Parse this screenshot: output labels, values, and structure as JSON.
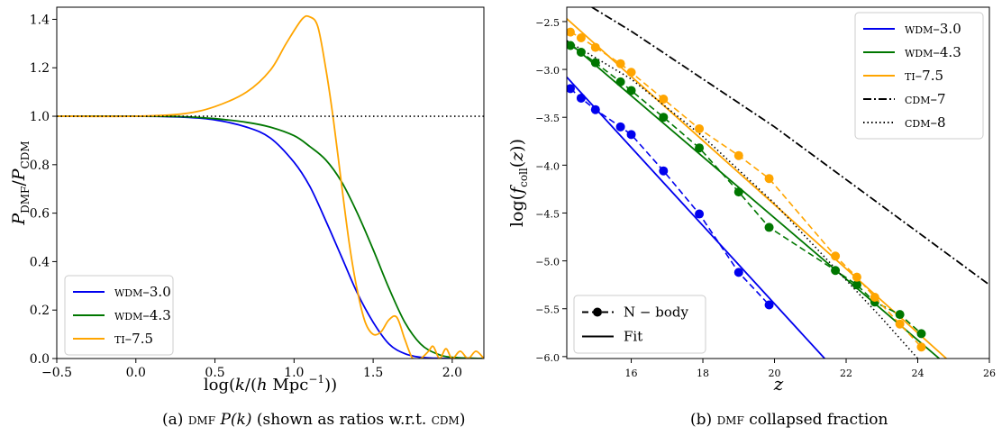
{
  "figure": {
    "captions": [
      {
        "prefix": "(a) ",
        "sc": "dmf",
        "rest_italic": " P(k)",
        "rest": " (shown as ratios w.r.t. ",
        "sc2": "cdm",
        "end": ")"
      },
      {
        "prefix": "(b) ",
        "sc": "dmf",
        "rest": " collapsed fraction"
      }
    ]
  },
  "chart_data": [
    {
      "type": "line",
      "title": "",
      "xlabel": "log(k/(h Mpc⁻¹))",
      "ylabel": "P_DMF / P_CDM",
      "xlim": [
        -0.5,
        2.2
      ],
      "ylim": [
        0.0,
        1.45
      ],
      "xticks": [
        -0.5,
        0.0,
        0.5,
        1.0,
        1.5,
        2.0
      ],
      "xtick_labels": [
        "−0.5",
        "0.0",
        "0.5",
        "1.0",
        "1.5",
        "2.0"
      ],
      "yticks": [
        0.0,
        0.2,
        0.4,
        0.6,
        0.8,
        1.0,
        1.2,
        1.4
      ],
      "ytick_labels": [
        "0.0",
        "0.2",
        "0.4",
        "0.6",
        "0.8",
        "1.0",
        "1.2",
        "1.4"
      ],
      "grid": false,
      "legend_position": "bottom-left",
      "series": [
        {
          "name": "wdm–3.0",
          "color": "#0000ee",
          "style": "solid",
          "x": [
            -0.5,
            0.0,
            0.3,
            0.5,
            0.7,
            0.85,
            1.0,
            1.1,
            1.2,
            1.3,
            1.4,
            1.5,
            1.6,
            1.7,
            1.8,
            1.9,
            2.0,
            2.2
          ],
          "y": [
            1.0,
            1.0,
            0.996,
            0.985,
            0.955,
            0.91,
            0.81,
            0.71,
            0.57,
            0.42,
            0.27,
            0.15,
            0.06,
            0.02,
            0.005,
            0.001,
            0.0,
            0.0
          ]
        },
        {
          "name": "wdm–4.3",
          "color": "#007700",
          "style": "solid",
          "x": [
            -0.5,
            0.0,
            0.3,
            0.5,
            0.7,
            0.85,
            1.0,
            1.1,
            1.2,
            1.3,
            1.4,
            1.5,
            1.6,
            1.7,
            1.8,
            1.9,
            2.0,
            2.2
          ],
          "y": [
            1.0,
            1.0,
            0.998,
            0.99,
            0.975,
            0.955,
            0.92,
            0.875,
            0.82,
            0.73,
            0.6,
            0.45,
            0.29,
            0.15,
            0.06,
            0.02,
            0.005,
            0.0
          ]
        },
        {
          "name": "ti–7.5",
          "color": "#ffa500",
          "style": "solid",
          "x": [
            -0.5,
            0.0,
            0.3,
            0.5,
            0.7,
            0.85,
            0.95,
            1.05,
            1.1,
            1.15,
            1.2,
            1.25,
            1.3,
            1.35,
            1.4,
            1.45,
            1.5,
            1.55,
            1.6,
            1.65,
            1.7,
            1.75,
            1.8,
            1.85,
            1.88,
            1.92,
            1.96,
            2.0,
            2.05,
            2.1,
            2.15,
            2.2
          ],
          "y": [
            1.0,
            1.0,
            1.01,
            1.04,
            1.1,
            1.19,
            1.3,
            1.4,
            1.41,
            1.37,
            1.2,
            0.98,
            0.72,
            0.47,
            0.28,
            0.15,
            0.1,
            0.11,
            0.16,
            0.17,
            0.08,
            0.0,
            0.0,
            0.03,
            0.05,
            0.0,
            0.04,
            0.0,
            0.03,
            0.0,
            0.03,
            0.0
          ]
        },
        {
          "name": "",
          "color": "#000000",
          "style": "dotted",
          "x": [
            -0.5,
            2.2
          ],
          "y": [
            1.0,
            1.0
          ]
        }
      ]
    },
    {
      "type": "line",
      "title": "",
      "xlabel": "z",
      "ylabel": "log(f_coll(z))",
      "xlim": [
        14.2,
        26.0
      ],
      "ylim": [
        -6.02,
        -2.35
      ],
      "xticks": [
        16,
        18,
        20,
        22,
        24,
        26
      ],
      "xtick_labels": [
        "16",
        "18",
        "20",
        "22",
        "24",
        "26"
      ],
      "yticks": [
        -2.5,
        -3.0,
        -3.5,
        -4.0,
        -4.5,
        -5.0,
        -5.5,
        -6.0
      ],
      "ytick_labels": [
        "−2.5",
        "−3.0",
        "−3.5",
        "−4.0",
        "−4.5",
        "−5.0",
        "−5.5",
        "−6.0"
      ],
      "grid": false,
      "legend_position": "top-right",
      "legend_lower": {
        "position": "bottom-left",
        "entries": [
          "N − body",
          "Fit"
        ]
      },
      "fits": [
        {
          "name": "wdm–3.0",
          "color": "#0000ee",
          "style": "solid",
          "x": [
            14.2,
            21.4
          ],
          "y": [
            -3.08,
            -6.02
          ]
        },
        {
          "name": "wdm–4.3",
          "color": "#007700",
          "style": "solid",
          "x": [
            14.2,
            24.6
          ],
          "y": [
            -2.7,
            -6.02
          ]
        },
        {
          "name": "ti–7.5",
          "color": "#ffa500",
          "style": "solid",
          "x": [
            14.2,
            24.8
          ],
          "y": [
            -2.47,
            -6.02
          ]
        },
        {
          "name": "cdm–7",
          "color": "#000000",
          "style": "dashdot",
          "x": [
            14.9,
            16.0,
            18.0,
            20.0,
            22.0,
            24.0,
            26.0
          ],
          "y": [
            -2.35,
            -2.6,
            -3.1,
            -3.6,
            -4.15,
            -4.7,
            -5.25
          ]
        },
        {
          "name": "cdm–8",
          "color": "#000000",
          "style": "dotted",
          "x": [
            14.2,
            16.0,
            18.0,
            20.0,
            22.0,
            23.0,
            24.0
          ],
          "y": [
            -2.7,
            -3.1,
            -3.7,
            -4.4,
            -5.2,
            -5.6,
            -6.02
          ]
        }
      ],
      "nbody": [
        {
          "name": "wdm–3.0",
          "color": "#0000ee",
          "x": [
            14.3,
            14.6,
            15.0,
            15.7,
            16.0,
            16.9,
            17.9,
            19.0,
            19.85
          ],
          "y": [
            -3.2,
            -3.3,
            -3.42,
            -3.6,
            -3.68,
            -4.06,
            -4.51,
            -5.12,
            -5.46
          ]
        },
        {
          "name": "wdm–4.3",
          "color": "#007700",
          "x": [
            14.3,
            14.6,
            15.0,
            15.7,
            16.0,
            16.9,
            17.9,
            19.0,
            19.85,
            21.7,
            22.3,
            22.8,
            23.5,
            24.1
          ],
          "y": [
            -2.75,
            -2.82,
            -2.93,
            -3.13,
            -3.22,
            -3.5,
            -3.82,
            -4.28,
            -4.65,
            -5.1,
            -5.25,
            -5.43,
            -5.56,
            -5.76
          ]
        },
        {
          "name": "ti–7.5",
          "color": "#ffa500",
          "x": [
            14.3,
            14.6,
            15.0,
            15.7,
            16.0,
            16.9,
            17.9,
            19.0,
            19.85,
            21.7,
            22.3,
            22.8,
            23.5,
            24.1
          ],
          "y": [
            -2.61,
            -2.67,
            -2.77,
            -2.94,
            -3.03,
            -3.31,
            -3.62,
            -3.9,
            -4.14,
            -4.95,
            -5.17,
            -5.38,
            -5.66,
            -5.9
          ]
        }
      ],
      "legend": [
        {
          "name": "wdm–3.0",
          "color": "#0000ee",
          "style": "solid"
        },
        {
          "name": "wdm–4.3",
          "color": "#007700",
          "style": "solid"
        },
        {
          "name": "ti–7.5",
          "color": "#ffa500",
          "style": "solid"
        },
        {
          "name": "cdm–7",
          "color": "#000000",
          "style": "dashdot"
        },
        {
          "name": "cdm–8",
          "color": "#000000",
          "style": "dotted"
        }
      ]
    }
  ]
}
